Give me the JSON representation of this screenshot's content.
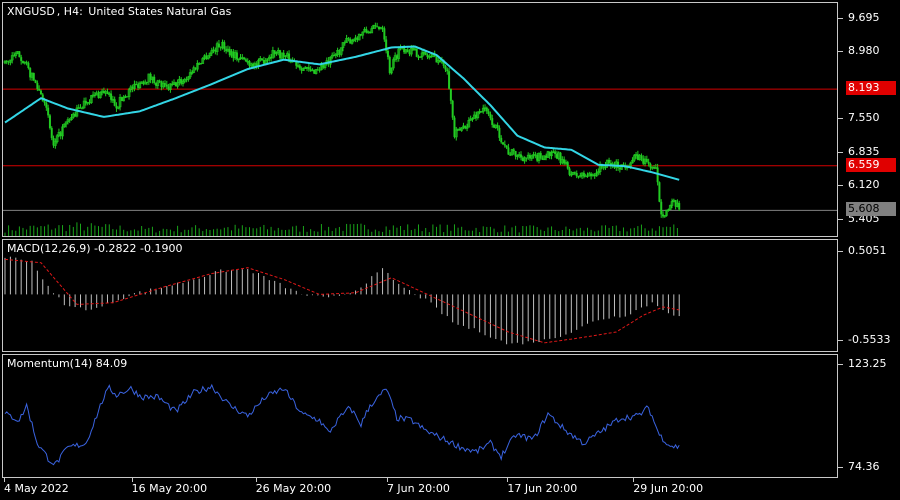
{
  "symbol": {
    "ticker": "XNGUSD",
    "timeframe": "H4:",
    "name": "United States Natural Gas"
  },
  "colors": {
    "background": "#000000",
    "candle_up": "#22cc22",
    "candle_down": "#22cc22",
    "ma_line": "#33d6e6",
    "volume": "#1aa51a",
    "level_line": "#d40000",
    "level_tag": "#e00000",
    "bid_line": "#808080",
    "macd_hist": "#c0c0c0",
    "macd_signal": "#e01818",
    "momentum": "#3a63e0",
    "border": "#c8c8c8"
  },
  "price_axis": {
    "ticks": [
      "9.695",
      "8.980",
      "7.550",
      "6.835",
      "6.120",
      "5.405"
    ],
    "tick_values": [
      9.695,
      8.98,
      7.55,
      6.835,
      6.12,
      5.405
    ],
    "range": [
      5.19,
      9.9
    ]
  },
  "levels": [
    {
      "label": "8.193",
      "value": 8.193,
      "kind": "level"
    },
    {
      "label": "6.559",
      "value": 6.559,
      "kind": "level"
    },
    {
      "label": "5.608",
      "value": 5.608,
      "kind": "bid"
    }
  ],
  "macd": {
    "label": "MACD(12,26,9) -0.2822 -0.1900",
    "ticks": [
      "0.5051",
      "-0.5533"
    ],
    "tick_values": [
      0.5051,
      -0.5533
    ],
    "range": [
      -0.63,
      0.58
    ]
  },
  "momentum": {
    "label": "Momentum(14) 84.09",
    "ticks": [
      "123.25",
      "74.36"
    ],
    "tick_values": [
      123.25,
      74.36
    ],
    "range": [
      72.0,
      125.0
    ]
  },
  "time_axis": {
    "labels": [
      "4 May 2022",
      "16 May 20:00",
      "26 May 20:00",
      "7 Jun 20:00",
      "17 Jun 20:00",
      "29 Jun 20:00"
    ],
    "label_bars": [
      0,
      71,
      140,
      213,
      280,
      350
    ]
  },
  "chart_data": {
    "type": "candlestick",
    "bars": 376,
    "close_anchors": [
      [
        0,
        8.75
      ],
      [
        8,
        8.95
      ],
      [
        15,
        8.45
      ],
      [
        22,
        7.95
      ],
      [
        27,
        6.95
      ],
      [
        32,
        7.35
      ],
      [
        45,
        7.95
      ],
      [
        55,
        8.15
      ],
      [
        62,
        7.85
      ],
      [
        70,
        8.2
      ],
      [
        80,
        8.45
      ],
      [
        90,
        8.2
      ],
      [
        100,
        8.4
      ],
      [
        110,
        8.85
      ],
      [
        120,
        9.15
      ],
      [
        130,
        8.85
      ],
      [
        140,
        8.7
      ],
      [
        150,
        9.0
      ],
      [
        160,
        8.8
      ],
      [
        170,
        8.55
      ],
      [
        180,
        8.75
      ],
      [
        190,
        9.2
      ],
      [
        200,
        9.4
      ],
      [
        210,
        9.55
      ],
      [
        214,
        8.6
      ],
      [
        220,
        9.1
      ],
      [
        230,
        8.95
      ],
      [
        240,
        8.85
      ],
      [
        246,
        8.65
      ],
      [
        250,
        7.2
      ],
      [
        258,
        7.5
      ],
      [
        266,
        7.8
      ],
      [
        274,
        7.3
      ],
      [
        280,
        6.85
      ],
      [
        292,
        6.7
      ],
      [
        302,
        6.8
      ],
      [
        308,
        6.75
      ],
      [
        316,
        6.35
      ],
      [
        326,
        6.35
      ],
      [
        334,
        6.6
      ],
      [
        344,
        6.55
      ],
      [
        352,
        6.75
      ],
      [
        358,
        6.6
      ],
      [
        362,
        6.45
      ],
      [
        365,
        5.55
      ],
      [
        368,
        5.6
      ],
      [
        372,
        5.75
      ],
      [
        376,
        5.6
      ]
    ],
    "ma_anchors": [
      [
        0,
        7.48
      ],
      [
        20,
        8.0
      ],
      [
        35,
        7.78
      ],
      [
        55,
        7.6
      ],
      [
        75,
        7.72
      ],
      [
        95,
        8.0
      ],
      [
        115,
        8.3
      ],
      [
        135,
        8.62
      ],
      [
        155,
        8.82
      ],
      [
        175,
        8.72
      ],
      [
        195,
        8.88
      ],
      [
        215,
        9.08
      ],
      [
        228,
        9.1
      ],
      [
        240,
        8.92
      ],
      [
        255,
        8.42
      ],
      [
        270,
        7.85
      ],
      [
        285,
        7.2
      ],
      [
        300,
        6.95
      ],
      [
        315,
        6.9
      ],
      [
        330,
        6.58
      ],
      [
        345,
        6.55
      ],
      [
        360,
        6.42
      ],
      [
        376,
        6.25
      ]
    ],
    "macd_hist_anchors": [
      [
        0,
        0.45
      ],
      [
        15,
        0.4
      ],
      [
        25,
        0.05
      ],
      [
        35,
        -0.15
      ],
      [
        50,
        -0.18
      ],
      [
        70,
        0.0
      ],
      [
        100,
        0.15
      ],
      [
        120,
        0.28
      ],
      [
        135,
        0.3
      ],
      [
        150,
        0.15
      ],
      [
        165,
        0.0
      ],
      [
        180,
        -0.05
      ],
      [
        195,
        0.05
      ],
      [
        210,
        0.3
      ],
      [
        220,
        0.1
      ],
      [
        235,
        -0.08
      ],
      [
        250,
        -0.35
      ],
      [
        265,
        -0.45
      ],
      [
        280,
        -0.6
      ],
      [
        300,
        -0.55
      ],
      [
        315,
        -0.45
      ],
      [
        330,
        -0.3
      ],
      [
        345,
        -0.25
      ],
      [
        360,
        -0.1
      ],
      [
        368,
        -0.2
      ],
      [
        376,
        -0.28
      ]
    ],
    "macd_signal_anchors": [
      [
        0,
        0.42
      ],
      [
        20,
        0.38
      ],
      [
        40,
        -0.12
      ],
      [
        60,
        -0.1
      ],
      [
        90,
        0.1
      ],
      [
        115,
        0.25
      ],
      [
        135,
        0.32
      ],
      [
        155,
        0.18
      ],
      [
        175,
        0.0
      ],
      [
        195,
        0.02
      ],
      [
        215,
        0.2
      ],
      [
        235,
        0.0
      ],
      [
        255,
        -0.2
      ],
      [
        280,
        -0.45
      ],
      [
        300,
        -0.58
      ],
      [
        320,
        -0.52
      ],
      [
        340,
        -0.45
      ],
      [
        355,
        -0.25
      ],
      [
        366,
        -0.15
      ],
      [
        376,
        -0.19
      ]
    ],
    "momentum_anchors": [
      [
        0,
        100
      ],
      [
        8,
        97
      ],
      [
        12,
        104
      ],
      [
        18,
        86
      ],
      [
        24,
        79
      ],
      [
        28,
        76
      ],
      [
        35,
        84
      ],
      [
        45,
        86
      ],
      [
        55,
        108
      ],
      [
        58,
        112
      ],
      [
        62,
        109
      ],
      [
        70,
        112
      ],
      [
        76,
        108
      ],
      [
        85,
        108
      ],
      [
        95,
        101
      ],
      [
        105,
        110
      ],
      [
        115,
        113
      ],
      [
        125,
        104
      ],
      [
        135,
        99
      ],
      [
        145,
        108
      ],
      [
        155,
        112
      ],
      [
        165,
        100
      ],
      [
        175,
        97
      ],
      [
        180,
        91
      ],
      [
        186,
        98
      ],
      [
        192,
        103
      ],
      [
        198,
        95
      ],
      [
        203,
        104
      ],
      [
        208,
        108
      ],
      [
        212,
        112
      ],
      [
        218,
        98
      ],
      [
        226,
        97
      ],
      [
        234,
        92
      ],
      [
        244,
        88
      ],
      [
        254,
        84
      ],
      [
        262,
        82
      ],
      [
        270,
        86
      ],
      [
        276,
        80
      ],
      [
        284,
        90
      ],
      [
        294,
        88
      ],
      [
        302,
        100
      ],
      [
        312,
        92
      ],
      [
        322,
        86
      ],
      [
        332,
        92
      ],
      [
        342,
        98
      ],
      [
        352,
        99
      ],
      [
        358,
        103
      ],
      [
        364,
        90
      ],
      [
        370,
        85
      ],
      [
        376,
        84.09
      ]
    ],
    "volume_anchors": [
      [
        0,
        0.55
      ],
      [
        40,
        0.7
      ],
      [
        80,
        0.5
      ],
      [
        120,
        0.6
      ],
      [
        160,
        0.55
      ],
      [
        200,
        0.65
      ],
      [
        240,
        0.6
      ],
      [
        280,
        0.55
      ],
      [
        320,
        0.5
      ],
      [
        360,
        0.6
      ],
      [
        376,
        0.7
      ]
    ]
  }
}
